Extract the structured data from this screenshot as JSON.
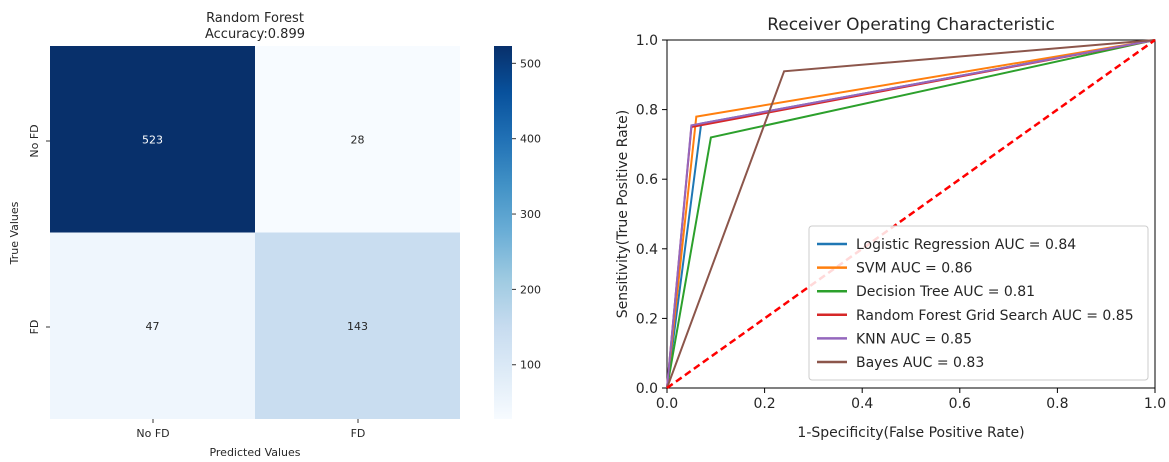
{
  "chart_data": [
    {
      "type": "heatmap",
      "title": "Random Forest",
      "subtitle": "Accuracy:0.899",
      "xlabel": "Predicted Values",
      "ylabel": "True Values",
      "x_categories": [
        "No FD",
        "FD"
      ],
      "y_categories": [
        "No FD",
        "FD"
      ],
      "values": [
        [
          523,
          28
        ],
        [
          47,
          143
        ]
      ],
      "colormap": "Blues",
      "colorbar": {
        "min": 28,
        "max": 523,
        "ticks": [
          100,
          200,
          300,
          400,
          500
        ]
      },
      "colors": {
        "low": "#f7fbff",
        "high": "#08306b"
      }
    },
    {
      "type": "line",
      "title": "Receiver Operating Characteristic",
      "xlabel": "1-Specificity(False Positive Rate)",
      "ylabel": "Sensitivity(True Positive Rate)",
      "xlim": [
        0,
        1
      ],
      "ylim": [
        0,
        1
      ],
      "xticks": [
        "0.0",
        "0.2",
        "0.4",
        "0.6",
        "0.8",
        "1.0"
      ],
      "yticks": [
        "0.0",
        "0.2",
        "0.4",
        "0.6",
        "0.8",
        "1.0"
      ],
      "legend_position": "lower-right",
      "grid": false,
      "series": [
        {
          "name": "Logistic Regression AUC = 0.84",
          "color": "#1f77b4",
          "points": [
            [
              0,
              0
            ],
            [
              0.07,
              0.76
            ],
            [
              1,
              1
            ]
          ]
        },
        {
          "name": "SVM AUC = 0.86",
          "color": "#ff7f0e",
          "points": [
            [
              0,
              0
            ],
            [
              0.06,
              0.78
            ],
            [
              1,
              1
            ]
          ]
        },
        {
          "name": "Decision Tree AUC = 0.81",
          "color": "#2ca02c",
          "points": [
            [
              0,
              0
            ],
            [
              0.09,
              0.72
            ],
            [
              1,
              1
            ]
          ]
        },
        {
          "name": "Random Forest Grid Search AUC = 0.85",
          "color": "#d62728",
          "points": [
            [
              0,
              0
            ],
            [
              0.05,
              0.75
            ],
            [
              1,
              1
            ]
          ]
        },
        {
          "name": "KNN AUC = 0.85",
          "color": "#9467bd",
          "points": [
            [
              0,
              0
            ],
            [
              0.05,
              0.755
            ],
            [
              1,
              1
            ]
          ]
        },
        {
          "name": "Bayes AUC = 0.83",
          "color": "#8c564b",
          "points": [
            [
              0,
              0
            ],
            [
              0.24,
              0.91
            ],
            [
              1,
              1
            ]
          ]
        }
      ],
      "reference_line": {
        "points": [
          [
            0,
            0
          ],
          [
            1,
            1
          ]
        ],
        "color": "#ff0000",
        "style": "dashed"
      }
    }
  ]
}
